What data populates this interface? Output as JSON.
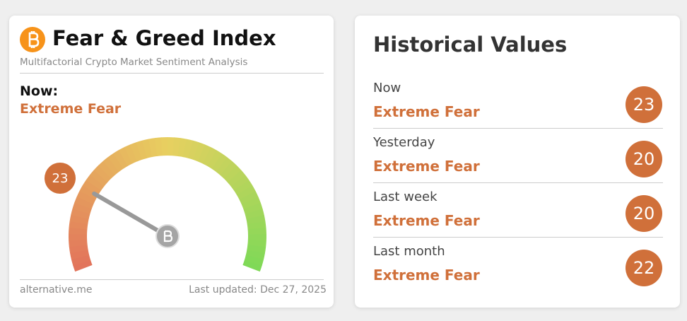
{
  "left": {
    "title": "Fear & Greed Index",
    "subtitle": "Multifactorial Crypto Market Sentiment Analysis",
    "now_label": "Now:",
    "classification": "Extreme Fear",
    "gauge": {
      "value": 23,
      "scale": [
        0,
        100
      ]
    },
    "source": "alternative.me",
    "updated": "Last updated: Dec 27, 2025"
  },
  "right": {
    "title": "Historical Values",
    "rows": [
      {
        "label": "Now",
        "classification": "Extreme Fear",
        "value": 23
      },
      {
        "label": "Yesterday",
        "classification": "Extreme Fear",
        "value": 20
      },
      {
        "label": "Last week",
        "classification": "Extreme Fear",
        "value": 20
      },
      {
        "label": "Last month",
        "classification": "Extreme Fear",
        "value": 22
      }
    ]
  }
}
